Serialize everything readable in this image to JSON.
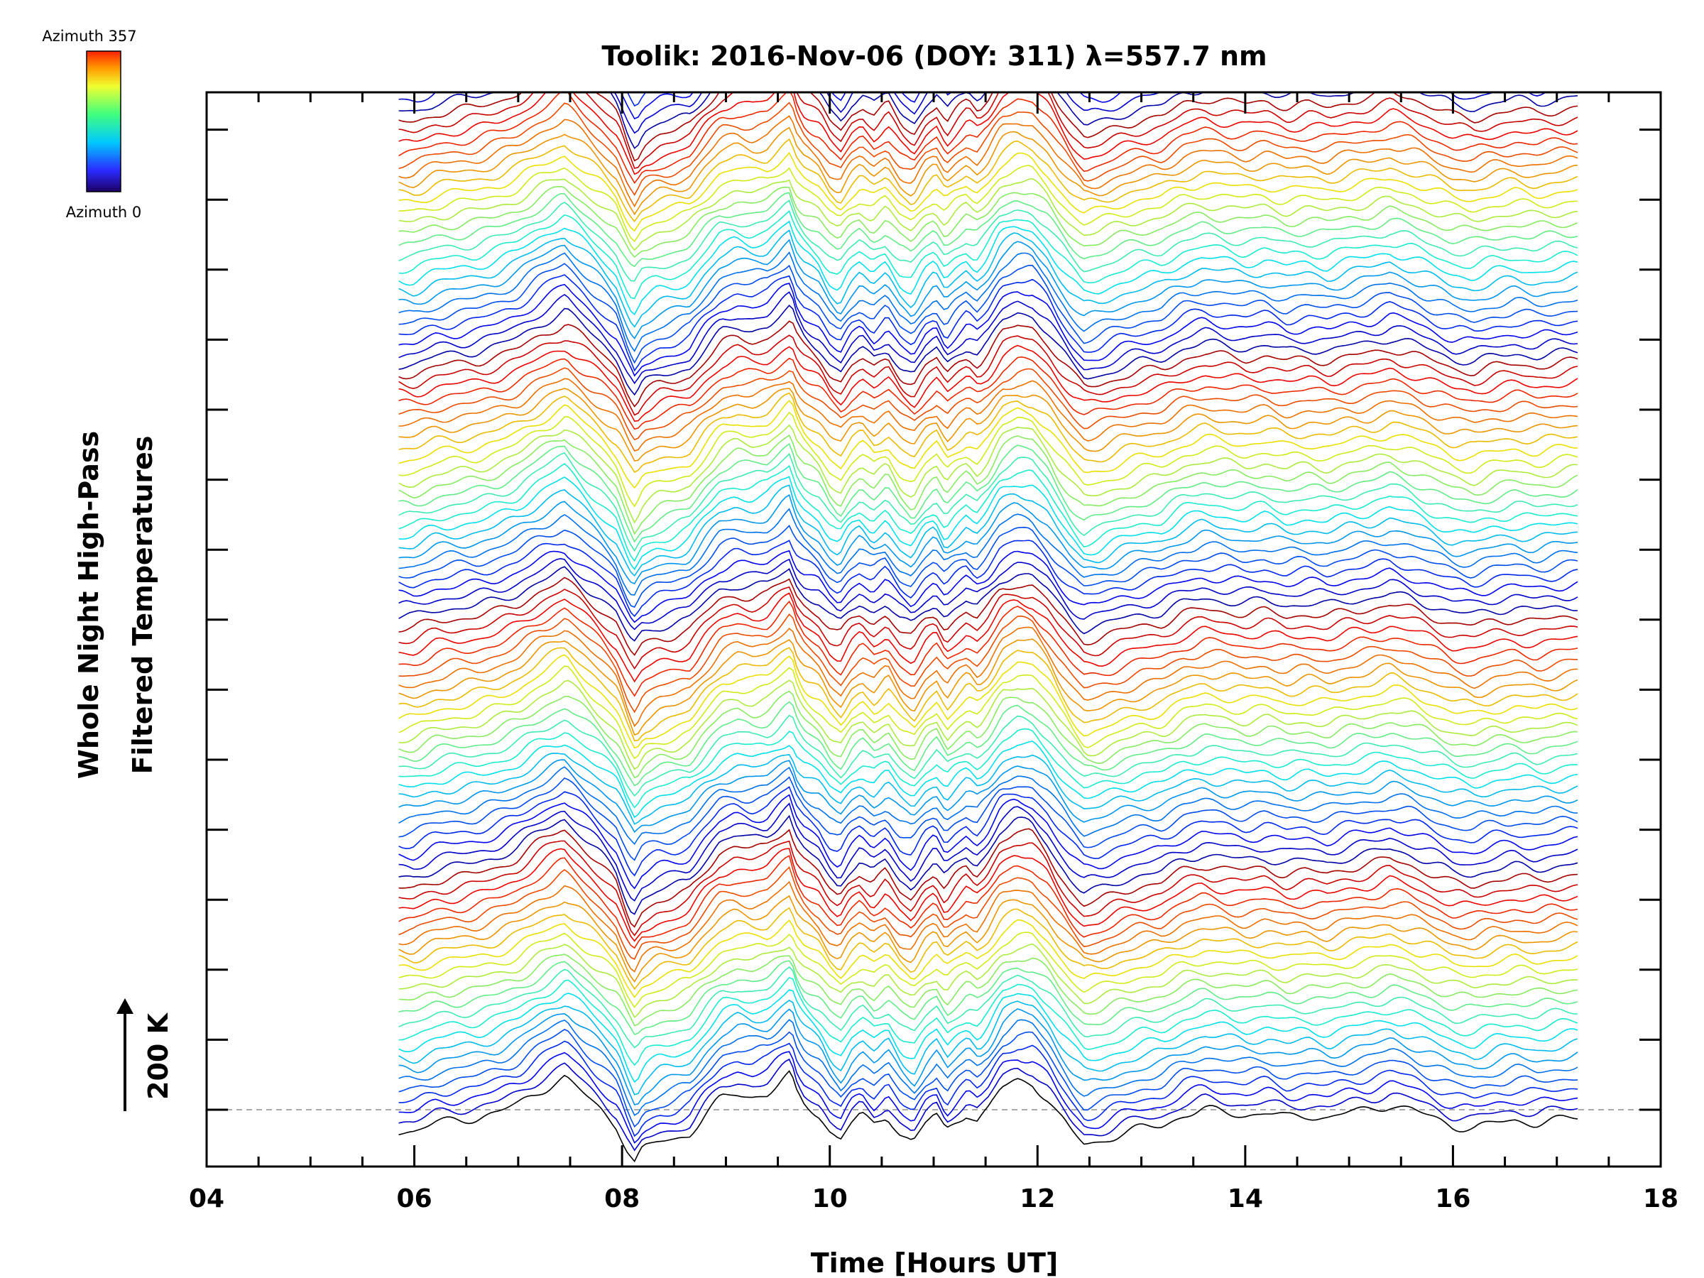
{
  "chart_data": {
    "type": "line",
    "title": "Toolik: 2016-Nov-06 (DOY: 311) λ=557.7 nm",
    "xlabel": "Time [Hours UT]",
    "ylabel_line1": "Whole Night High-Pass",
    "ylabel_line2": "Filtered Temperatures",
    "scale_label": "200 K",
    "xlim": [
      4,
      18
    ],
    "x_ticks": [
      "04",
      "06",
      "08",
      "10",
      "12",
      "14",
      "16",
      "18"
    ],
    "x_tick_values": [
      4,
      6,
      8,
      10,
      12,
      14,
      16,
      18
    ],
    "data_x_range": [
      5.85,
      17.2
    ],
    "series_count": 138,
    "series_offset_K": 20,
    "legend": {
      "top_label": "Azimuth 357",
      "bottom_label": "Azimuth 0",
      "azimuth_range": [
        0,
        357
      ]
    },
    "colors": {
      "baseline": "#aaaaaa",
      "axis": "#000000"
    },
    "baseline_profile": {
      "x": [
        5.85,
        6.0,
        6.2,
        6.4,
        6.6,
        6.8,
        7.0,
        7.2,
        7.35,
        7.45,
        7.6,
        7.8,
        7.95,
        8.05,
        8.12,
        8.2,
        8.35,
        8.5,
        8.65,
        8.8,
        8.95,
        9.1,
        9.25,
        9.4,
        9.55,
        9.62,
        9.68,
        9.75,
        9.9,
        10.0,
        10.1,
        10.2,
        10.3,
        10.42,
        10.55,
        10.68,
        10.8,
        10.92,
        11.02,
        11.12,
        11.22,
        11.32,
        11.42,
        11.52,
        11.65,
        11.8,
        11.95,
        12.1,
        12.2,
        12.32,
        12.45,
        12.6,
        12.8,
        13.0,
        13.2,
        13.4,
        13.6,
        13.8,
        14.0,
        14.2,
        14.4,
        14.6,
        14.8,
        15.0,
        15.2,
        15.4,
        15.6,
        15.8,
        16.0,
        16.2,
        16.4,
        16.6,
        16.8,
        17.0,
        17.2
      ],
      "y": [
        -40,
        -40,
        -25,
        -20,
        -15,
        -5,
        10,
        35,
        50,
        60,
        35,
        0,
        -30,
        -75,
        -100,
        -75,
        -60,
        -55,
        -45,
        -10,
        20,
        30,
        25,
        30,
        55,
        65,
        30,
        10,
        -10,
        -40,
        -55,
        -25,
        -10,
        -30,
        -10,
        -45,
        -60,
        -25,
        -10,
        -40,
        -20,
        -5,
        -20,
        0,
        40,
        55,
        50,
        20,
        -10,
        -40,
        -65,
        -60,
        -45,
        -35,
        -30,
        -10,
        0,
        -5,
        -10,
        -5,
        -15,
        -10,
        -15,
        -5,
        0,
        10,
        0,
        -15,
        -30,
        -35,
        -25,
        -20,
        -25,
        -20,
        -15
      ]
    }
  }
}
